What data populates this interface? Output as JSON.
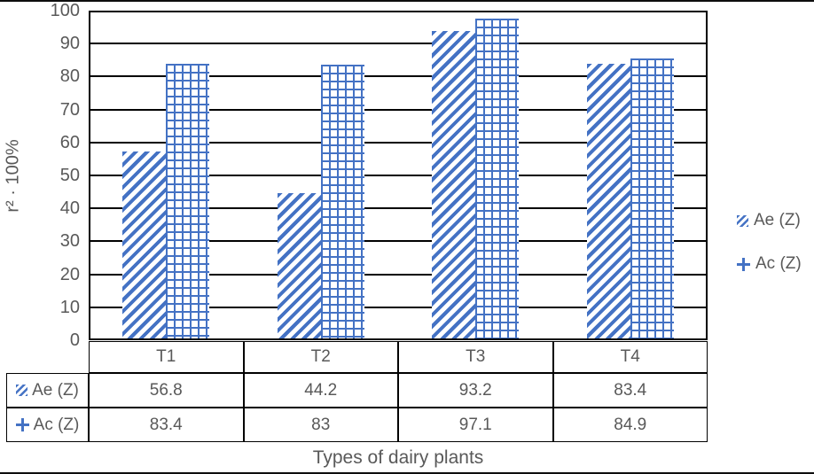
{
  "chart_data": {
    "type": "bar",
    "categories": [
      "T1",
      "T2",
      "T3",
      "T4"
    ],
    "series": [
      {
        "name": "Ae (Z)",
        "values": [
          56.8,
          44.2,
          93.2,
          83.4
        ],
        "pattern": "diagonal-hatch",
        "icon": "diagonal-hatch-swatch-icon"
      },
      {
        "name": "Ac (Z)",
        "values": [
          83.4,
          83,
          97.1,
          84.9
        ],
        "pattern": "cross-hatch",
        "icon": "plus-swatch-icon"
      }
    ],
    "title": "",
    "xlabel": "Types of dairy plants",
    "ylabel": "r² · 100%",
    "ylim": [
      0,
      100
    ],
    "ytick_step": 10,
    "yticks": [
      100,
      90,
      80,
      70,
      60,
      50,
      40,
      30,
      20,
      10,
      0
    ],
    "grid": true,
    "legend_position": "right",
    "data_table_shown": true,
    "accent_color": "#4472C4",
    "text_color": "#595959",
    "line_color": "#000000"
  }
}
